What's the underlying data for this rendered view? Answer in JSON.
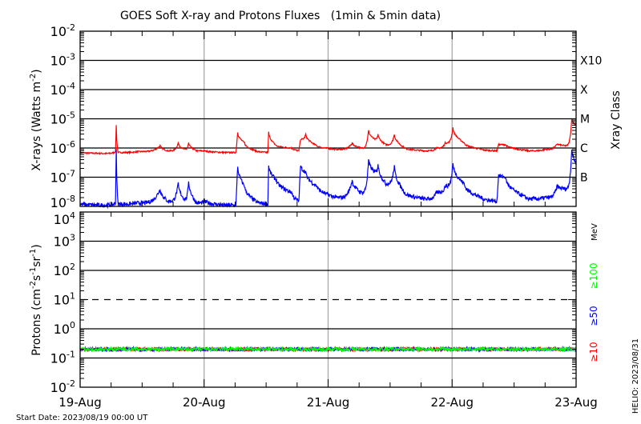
{
  "chart_data": [
    {
      "type": "line",
      "title": "GOES Soft X-ray and Protons Fluxes   (1min & 5min data)",
      "ylabel": "X-rays (Watts m^-2)",
      "yscale": "log",
      "ylim": [
        1e-08,
        0.01
      ],
      "ytick_labels": [
        {
          "base": "10",
          "exp": "-2"
        },
        {
          "base": "10",
          "exp": "-3"
        },
        {
          "base": "10",
          "exp": "-4"
        },
        {
          "base": "10",
          "exp": "-5"
        },
        {
          "base": "10",
          "exp": "-6"
        },
        {
          "base": "10",
          "exp": "-7"
        },
        {
          "base": "10",
          "exp": "-8"
        }
      ],
      "right_axis": {
        "label": "Xray Class",
        "classes": [
          "X10",
          "X",
          "M",
          "C",
          "B"
        ]
      },
      "grid": true,
      "colors": {
        "long": "#ff0000",
        "short": "#0000ff"
      },
      "x": [
        "2023-08-19 00:00",
        "2023-08-19 04:40",
        "2023-08-19 06:50",
        "2023-08-19 07:00",
        "2023-08-19 07:20",
        "2023-08-19 11:00",
        "2023-08-19 15:30",
        "2023-08-19 17:00",
        "2023-08-19 19:00",
        "2023-08-19 20:10",
        "2023-08-19 21:00",
        "2023-08-19 22:30",
        "2023-08-20 00:10",
        "2023-08-20 04:00",
        "2023-08-20 06:10",
        "2023-08-20 06:30",
        "2023-08-20 07:50",
        "2023-08-20 10:00",
        "2023-08-20 12:20",
        "2023-08-20 12:30",
        "2023-08-20 14:00",
        "2023-08-20 17:00",
        "2023-08-20 18:20",
        "2023-08-20 18:40",
        "2023-08-20 19:40",
        "2023-08-20 21:50",
        "2023-08-21 01:40",
        "2023-08-21 04:40",
        "2023-08-21 06:20",
        "2023-08-21 07:50",
        "2023-08-21 09:00",
        "2023-08-21 09:40",
        "2023-08-21 11:10",
        "2023-08-21 12:50",
        "2023-08-21 14:50",
        "2023-08-21 18:40",
        "2023-08-21 21:00",
        "2023-08-21 22:40",
        "2023-08-22 00:10",
        "2023-08-22 02:20",
        "2023-08-22 05:40",
        "2023-08-22 08:40",
        "2023-08-22 09:00",
        "2023-08-22 10:20",
        "2023-08-22 14:50",
        "2023-08-22 18:00",
        "2023-08-22 20:20",
        "2023-08-22 21:50",
        "2023-08-22 23:10",
        "2023-08-23 00:00"
      ],
      "series": [
        {
          "key": "long",
          "values": [
            7e-07,
            6.5e-07,
            7.5e-07,
            6e-06,
            7e-07,
            7.5e-07,
            1.2e-06,
            8e-07,
            1.5e-06,
            9e-07,
            1.5e-06,
            8e-07,
            8e-07,
            7e-07,
            7e-07,
            3.5e-06,
            1.5e-06,
            8e-07,
            7e-07,
            3.5e-06,
            1.2e-06,
            1e-06,
            8e-07,
            2e-06,
            3e-06,
            1.2e-06,
            9e-07,
            1.5e-06,
            1e-06,
            4e-06,
            2e-06,
            3e-06,
            1.3e-06,
            3e-06,
            1e-06,
            8e-07,
            1e-06,
            1.5e-06,
            5e-06,
            1.5e-06,
            9e-07,
            8e-07,
            1.3e-06,
            1.3e-06,
            8e-07,
            9e-07,
            1.4e-06,
            1.2e-06,
            1e-05,
            6e-06
          ]
        },
        {
          "key": "short",
          "values": [
            1.2e-08,
            1.1e-08,
            1.3e-08,
            1e-06,
            1.2e-08,
            1.3e-08,
            4e-08,
            1.5e-08,
            6e-08,
            1.8e-08,
            8e-08,
            1.3e-08,
            1.5e-08,
            1.1e-08,
            1.1e-08,
            2.5e-07,
            5e-08,
            1.5e-08,
            1.2e-08,
            2.5e-07,
            8e-08,
            3e-08,
            1.5e-08,
            2.5e-07,
            1.5e-07,
            5e-08,
            2e-08,
            8e-08,
            3e-08,
            4e-07,
            1.5e-07,
            3e-07,
            6e-08,
            2.5e-07,
            3e-08,
            1.8e-08,
            3e-08,
            5e-08,
            3e-07,
            6e-08,
            2e-08,
            1.5e-08,
            1.2e-07,
            1e-07,
            1.8e-08,
            2e-08,
            5e-08,
            4e-08,
            1e-06,
            3e-07
          ]
        }
      ]
    },
    {
      "type": "line",
      "ylabel": "Protons (cm^-2 s^-1 sr^-1)",
      "yscale": "log",
      "ylim": [
        0.01,
        10000.0
      ],
      "ytick_labels": [
        {
          "base": "10",
          "exp": "4"
        },
        {
          "base": "10",
          "exp": "3"
        },
        {
          "base": "10",
          "exp": "2"
        },
        {
          "base": "10",
          "exp": "1"
        },
        {
          "base": "10",
          "exp": "0"
        },
        {
          "base": "10",
          "exp": "-1"
        },
        {
          "base": "10",
          "exp": "-2"
        }
      ],
      "threshold": 10,
      "unit_label": "MeV",
      "x": [
        "2023-08-19 00:00",
        "2023-08-23 00:00"
      ],
      "series": [
        {
          "name": "≥10",
          "color": "#ff0000",
          "values": [
            0.2,
            0.2
          ]
        },
        {
          "name": "≥50",
          "color": "#0000ff",
          "values": [
            0.2,
            0.2
          ]
        },
        {
          "name": "≥100",
          "color": "#00ff00",
          "values": [
            0.2,
            0.2
          ]
        }
      ]
    }
  ],
  "xaxis": {
    "tick_labels": [
      "19-Aug",
      "20-Aug",
      "21-Aug",
      "22-Aug",
      "23-Aug"
    ],
    "range": [
      "2023-08-19 00:00",
      "2023-08-23 00:00"
    ]
  },
  "footer": {
    "start_date": "Start Date: 2023/08/19 00:00 UT",
    "credit": "HELIO: 2023/08/31"
  }
}
